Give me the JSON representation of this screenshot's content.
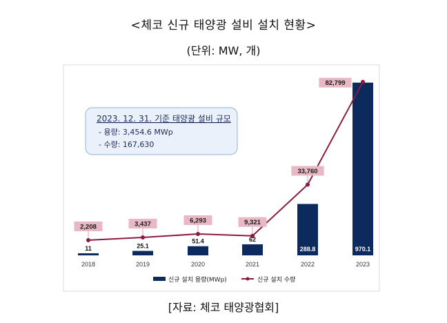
{
  "title": "<체코 신규 태양광 설비 설치 현황>",
  "unit": "(단위: MW, 개)",
  "source": "[자료: 체코 태양광협회]",
  "colors": {
    "bar": "#0d2a5e",
    "line": "#8b1a3e",
    "label_bg": "#e8b8c4",
    "box_bg": "#eaf1fa",
    "box_border": "#8fb1d6"
  },
  "infobox": {
    "title": "2023. 12. 31. 기준 태양광 설비 규모",
    "line1": "- 용량: 3,454.6 MWp",
    "line2": "- 수량: 167,630"
  },
  "legend": {
    "bar": "신규 설치 용량(MWp)",
    "line": "신규 설치 수량"
  },
  "chart_data": {
    "type": "bar",
    "categories": [
      "2018",
      "2019",
      "2020",
      "2021",
      "2022",
      "2023"
    ],
    "series": [
      {
        "name": "신규 설치 용량(MWp)",
        "type": "bar",
        "values": [
          11,
          25.1,
          51.4,
          62,
          288.8,
          970.1
        ],
        "labels": [
          "11",
          "25.1",
          "51.4",
          "62",
          "288.8",
          "970.1"
        ]
      },
      {
        "name": "신규 설치 수량",
        "type": "line",
        "values": [
          2208,
          3437,
          6293,
          9321,
          33760,
          82799
        ],
        "labels": [
          "2,208",
          "3,437",
          "6,293",
          "9,321",
          "33,760",
          "82,799"
        ]
      }
    ],
    "bar_axis_max": 1000,
    "line_axis_max": 85000,
    "grid": false,
    "legend_position": "bottom"
  }
}
